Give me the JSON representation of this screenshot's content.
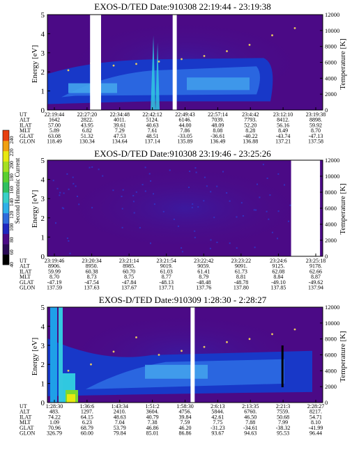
{
  "colors": {
    "background": "#4b0a86",
    "plasma_dark": "#1838c8",
    "plasma_mid": "#2a66e0",
    "plasma_light": "#44a4ec",
    "plasma_cyan": "#30c8e0",
    "temperature_trace": "#e8c860",
    "gap": "#ffffff",
    "colorbar": [
      "#000000",
      "#2a0a55",
      "#4b0a86",
      "#1f28c0",
      "#2e6bdc",
      "#2eb0e8",
      "#38d0c8",
      "#2fc060",
      "#5ad030",
      "#a6e020",
      "#e8e810",
      "#f0a010",
      "#e84010"
    ]
  },
  "colorbar": {
    "label": "Second Harmonic Current",
    "ticks": [
      "240",
      "220",
      "200",
      "180",
      "160",
      "140",
      "120",
      "100",
      "80",
      "60",
      "40"
    ]
  },
  "row_labels": [
    "UT",
    "ALT",
    "ILAT",
    "MLT",
    "GLAT",
    "GLON"
  ],
  "chart_data": [
    {
      "type": "heatmap",
      "title": "EXOS-D/TED   Date:910308  22:19:44 - 23:19:38",
      "ylabel": "Energy [eV]",
      "y2label": "Temperature [K]",
      "ylim": [
        0,
        5
      ],
      "y2lim": [
        0,
        12000
      ],
      "yticks": [
        "0",
        "1",
        "2",
        "3",
        "4",
        "5"
      ],
      "y2ticks": [
        "0",
        "2000",
        "4000",
        "6000",
        "8000",
        "10000",
        "12000"
      ],
      "gaps_fraction": [
        [
          0.155,
          0.195
        ],
        [
          0.455,
          0.47
        ]
      ],
      "band_energy_eV": {
        "low": 0.6,
        "high": 2.8
      },
      "temperature_trace_K": [
        5000,
        5900,
        5600,
        5800,
        6100,
        6400,
        6800,
        7400,
        8200,
        9400,
        10300
      ],
      "columns": [
        {
          "UT": "22:19:44",
          "ALT": "1642",
          "ILAT": "57.00",
          "MLT": "5.89",
          "GLAT": "63.08",
          "GLON": "118.49"
        },
        {
          "UT": "22:27:20",
          "ALT": "2822.",
          "ILAT": "43.95",
          "MLT": "6.82",
          "GLAT": "51.32",
          "GLON": "130.34"
        },
        {
          "UT": "22:34:48",
          "ALT": "4011.",
          "ILAT": "39.61",
          "MLT": "7.29",
          "GLAT": "47.53",
          "GLON": "134.64"
        },
        {
          "UT": "22:42:12",
          "ALT": "5124.",
          "ILAT": "40.63",
          "MLT": "7.61",
          "GLAT": "48.51",
          "GLON": "137.14"
        },
        {
          "UT": "22:49:43",
          "ALT": "6146.",
          "ILAT": "44.00",
          "MLT": "7.86",
          "GLAT": "-33.05",
          "GLON": "135.89"
        },
        {
          "UT": "22:57:14",
          "ALT": "7039.",
          "ILAT": "48.09",
          "MLT": "8.08",
          "GLAT": "-36.61",
          "GLON": "136.49"
        },
        {
          "UT": "23:4:42",
          "ALT": "7793.",
          "ILAT": "52.20",
          "MLT": "8.28",
          "GLAT": "-40.22",
          "GLON": "136.88"
        },
        {
          "UT": "23:12:10",
          "ALT": "8412.",
          "ILAT": "56.16",
          "MLT": "8.49",
          "GLAT": "-43.74",
          "GLON": "137.21"
        },
        {
          "UT": "23:19:38",
          "ALT": "8898.",
          "ILAT": "59.92",
          "MLT": "8.70",
          "GLAT": "-47.13",
          "GLON": "137.58"
        }
      ]
    },
    {
      "type": "heatmap",
      "title": "EXOS-D/TED   Date:910308  23:19:46 - 23:25:26",
      "ylabel": "Energy [eV]",
      "y2label": "Temperature [K]",
      "ylim": [
        0,
        5
      ],
      "y2lim": [
        0,
        12000
      ],
      "yticks": [
        "0",
        "1",
        "2",
        "3",
        "4",
        "5"
      ],
      "y2ticks": [
        "0",
        "2000",
        "4000",
        "6000",
        "8000",
        "10000",
        "12000"
      ],
      "gaps_fraction": [
        [
          0.885,
          0.99
        ]
      ],
      "columns": [
        {
          "UT": "23:19:46",
          "ALT": "8906.",
          "ILAT": "59.99",
          "MLT": "8.70",
          "GLAT": "-47.19",
          "GLON": "137.59"
        },
        {
          "UT": "23:20:34",
          "ALT": "8950.",
          "ILAT": "60.38",
          "MLT": "8.73",
          "GLAT": "-47.54",
          "GLON": "137.63"
        },
        {
          "UT": "23:21:14",
          "ALT": "8985.",
          "ILAT": "60.70",
          "MLT": "8.75",
          "GLAT": "-47.84",
          "GLON": "137.67"
        },
        {
          "UT": "23:21:54",
          "ALT": "9019.",
          "ILAT": "61.03",
          "MLT": "8.77",
          "GLAT": "-48.13",
          "GLON": "137.71"
        },
        {
          "UT": "23:22:42",
          "ALT": "9059.",
          "ILAT": "61.41",
          "MLT": "8.79",
          "GLAT": "-48.48",
          "GLON": "137.76"
        },
        {
          "UT": "23:23:22",
          "ALT": "9091.",
          "ILAT": "61.73",
          "MLT": "8.81",
          "GLAT": "-48.78",
          "GLON": "137.80"
        },
        {
          "UT": "23:24:6",
          "ALT": "9125.",
          "ILAT": "62.08",
          "MLT": "8.84",
          "GLAT": "-49.10",
          "GLON": "137.85"
        },
        {
          "UT": "23:25:18",
          "ALT": "9178.",
          "ILAT": "62.66",
          "MLT": "8.87",
          "GLAT": "-49.62",
          "GLON": "137.94"
        }
      ]
    },
    {
      "type": "heatmap",
      "title": "EXOS-D/TED   Date:910309   1:28:30 - 2:28:27",
      "ylabel": "Energy [eV]",
      "y2label": "Temperature [K]",
      "ylim": [
        0,
        5
      ],
      "y2lim": [
        0,
        12000
      ],
      "yticks": [
        "0",
        "1",
        "2",
        "3",
        "4",
        "5"
      ],
      "y2ticks": [
        "0",
        "2000",
        "4000",
        "6000",
        "8000",
        "10000",
        "12000"
      ],
      "gaps_fraction": [
        [
          0.52,
          0.535
        ]
      ],
      "band_energy_eV": {
        "low": 0.7,
        "high": 3.0
      },
      "temperature_trace_K": [
        4000,
        4800,
        6400,
        8200,
        6000,
        6500,
        7000,
        7600,
        8000,
        8600,
        9200
      ],
      "columns": [
        {
          "UT": "1:28:30",
          "ALT": "483.",
          "ILAT": "74.22",
          "MLT": "1.09",
          "GLAT": "70.96",
          "GLON": "326.79"
        },
        {
          "UT": "1:36:6",
          "ALT": "1297.",
          "ILAT": "64.15",
          "MLT": "6.23",
          "GLAT": "68.79",
          "GLON": "60.00"
        },
        {
          "UT": "1:43:34",
          "ALT": "2410.",
          "ILAT": "48.63",
          "MLT": "7.04",
          "GLAT": "53.79",
          "GLON": "79.84"
        },
        {
          "UT": "1:51:2",
          "ALT": "3604.",
          "ILAT": "40.79",
          "MLT": "7.38",
          "GLAT": "46.86",
          "GLON": "85.01"
        },
        {
          "UT": "1:58:30",
          "ALT": "4756.",
          "ILAT": "39.84",
          "MLT": "7.59",
          "GLAT": "46.20",
          "GLON": "86.86"
        },
        {
          "UT": "2:6:13",
          "ALT": "5844.",
          "ILAT": "42.61",
          "MLT": "7.75",
          "GLAT": "-31.23",
          "GLON": "93.67"
        },
        {
          "UT": "2:13:35",
          "ALT": "6760.",
          "ILAT": "46.50",
          "MLT": "7.88",
          "GLAT": "-34.61",
          "GLON": "94.63"
        },
        {
          "UT": "2:21:3",
          "ALT": "7559.",
          "ILAT": "50.68",
          "MLT": "7.99",
          "GLAT": "-38.32",
          "GLON": "95.53"
        },
        {
          "UT": "2:28:27",
          "ALT": "8217.",
          "ILAT": "54.71",
          "MLT": "8.10",
          "GLAT": "-41.99",
          "GLON": "96.44"
        }
      ]
    }
  ]
}
